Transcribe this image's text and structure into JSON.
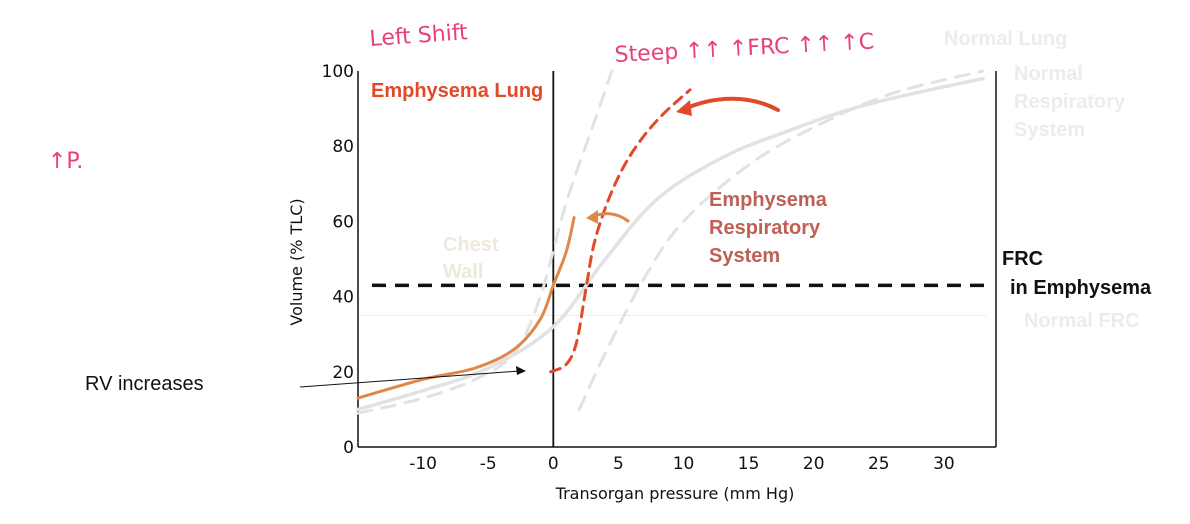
{
  "chart_data": {
    "type": "line",
    "title": "Emphysema  Lung",
    "xlabel": "Transorgan pressure (mm Hg)",
    "ylabel": "Volume (% TLC)",
    "xlim": [
      -15,
      34
    ],
    "ylim": [
      0,
      100
    ],
    "x_ticks": [
      "-10",
      "-5",
      "0",
      "5",
      "10",
      "15",
      "20",
      "25",
      "30"
    ],
    "y_ticks": [
      "0",
      "20",
      "40",
      "60",
      "80",
      "100"
    ],
    "grid": false,
    "colors": {
      "normal": "#e2e2e2",
      "emphysema_lung": "#e04a2a",
      "emphysema_chest_wall": "#e0874a",
      "emphysema_system_label": "#c06055",
      "faded_label": "#ececec",
      "annotation_pink": "#e8407a",
      "reference": "#111111"
    },
    "series": [
      {
        "name": "Normal Lung",
        "style": "dashed",
        "points": [
          [
            -15,
            9
          ],
          [
            -10,
            13
          ],
          [
            -6,
            18
          ],
          [
            -3,
            25
          ],
          [
            -1,
            40
          ],
          [
            1,
            65
          ],
          [
            3,
            85
          ],
          [
            4.5,
            100
          ]
        ]
      },
      {
        "name": "Normal Respiratory System",
        "style": "solid",
        "points": [
          [
            -15,
            10
          ],
          [
            -10,
            15
          ],
          [
            -5,
            21
          ],
          [
            0,
            32
          ],
          [
            4,
            50
          ],
          [
            8,
            66
          ],
          [
            13,
            77
          ],
          [
            18,
            84
          ],
          [
            24,
            91
          ],
          [
            33,
            98
          ]
        ]
      },
      {
        "name": "",
        "style": "dashed",
        "points": [
          [
            2,
            10
          ],
          [
            4,
            25
          ],
          [
            7,
            45
          ],
          [
            10,
            60
          ],
          [
            15,
            75
          ],
          [
            20,
            85
          ],
          [
            26,
            94
          ],
          [
            33,
            100
          ]
        ]
      },
      {
        "name": "Chest Wall",
        "style": "solid",
        "points": [
          [
            -15,
            13
          ],
          [
            -10,
            18
          ],
          [
            -6,
            21
          ],
          [
            -3,
            26
          ],
          [
            -1,
            34
          ],
          [
            0,
            43
          ],
          [
            1,
            52
          ],
          [
            1.6,
            61
          ]
        ]
      },
      {
        "name": "Emphysema Respiratory System",
        "style": "dashed",
        "points": [
          [
            -0.2,
            20
          ],
          [
            1,
            22
          ],
          [
            1.8,
            28
          ],
          [
            2.5,
            42
          ],
          [
            3.2,
            55
          ],
          [
            4.5,
            68
          ],
          [
            6,
            78
          ],
          [
            8,
            87
          ],
          [
            10.5,
            95
          ]
        ]
      }
    ],
    "annotations": {
      "lung_label": "Emphysema  Lung",
      "system_label": [
        "Emphysema",
        "Respiratory",
        "System"
      ],
      "frc_label": [
        "FRC",
        "in Emphysema"
      ],
      "normal_lung_label": "Normal Lung",
      "normal_system_label": [
        "Normal",
        "Respiratory",
        "System"
      ],
      "chest_wall_label": [
        "Chest",
        "Wall"
      ],
      "normal_frc_label": "Normal FRC",
      "rv_label": "RV increases",
      "left_shift": "Left Shift",
      "steep_note": "Steep ↑↑ ↑FRC ↑↑ ↑C",
      "side_note": "↑P."
    },
    "reference_lines": {
      "emphysema_frc_y": 43,
      "normal_frc_y": 35
    }
  }
}
